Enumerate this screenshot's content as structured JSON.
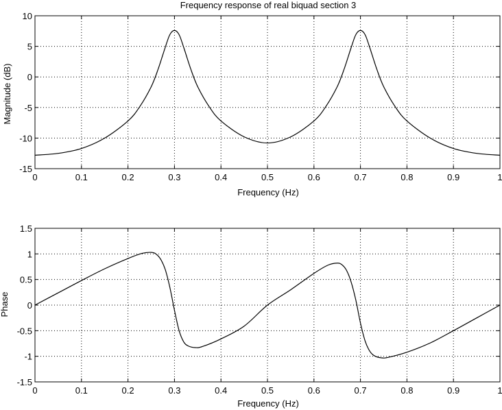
{
  "chart_data": [
    {
      "type": "line",
      "title": "Frequency response of real biquad section 3",
      "xlabel": "Frequency (Hz)",
      "ylabel": "Magnitude (dB)",
      "xlim": [
        0,
        1
      ],
      "ylim": [
        -15,
        10
      ],
      "xticks": [
        0,
        0.1,
        0.2,
        0.3,
        0.4,
        0.5,
        0.6,
        0.7,
        0.8,
        0.9,
        1
      ],
      "xtick_labels": [
        "0",
        "0.1",
        "0.2",
        "0.3",
        "0.4",
        "0.5",
        "0.6",
        "0.7",
        "0.8",
        "0.9",
        "1"
      ],
      "yticks": [
        -15,
        -10,
        -5,
        0,
        5,
        10
      ],
      "ytick_labels": [
        "-15",
        "-10",
        "-5",
        "0",
        "5",
        "10"
      ],
      "grid": true,
      "series": [
        {
          "x": [
            0,
            0.05,
            0.1,
            0.15,
            0.2,
            0.225,
            0.25,
            0.265,
            0.28,
            0.29,
            0.3,
            0.31,
            0.32,
            0.335,
            0.35,
            0.375,
            0.4,
            0.45,
            0.5,
            0.55,
            0.6,
            0.625,
            0.65,
            0.665,
            0.68,
            0.69,
            0.7,
            0.71,
            0.72,
            0.735,
            0.75,
            0.775,
            0.8,
            0.85,
            0.9,
            0.95,
            1
          ],
          "y": [
            -12.8,
            -12.5,
            -11.7,
            -10.0,
            -7.2,
            -4.9,
            -1.6,
            1.3,
            4.8,
            6.9,
            7.6,
            6.9,
            4.8,
            1.3,
            -1.6,
            -4.9,
            -7.2,
            -9.8,
            -10.8,
            -9.8,
            -7.2,
            -4.9,
            -1.6,
            1.3,
            4.8,
            6.9,
            7.6,
            6.9,
            4.8,
            1.3,
            -1.6,
            -4.9,
            -7.2,
            -10.0,
            -11.7,
            -12.5,
            -12.8
          ]
        }
      ]
    },
    {
      "type": "line",
      "title": "",
      "xlabel": "Frequency (Hz)",
      "ylabel": "Phase",
      "xlim": [
        0,
        1
      ],
      "ylim": [
        -1.5,
        1.5
      ],
      "xticks": [
        0,
        0.1,
        0.2,
        0.3,
        0.4,
        0.5,
        0.6,
        0.7,
        0.8,
        0.9,
        1
      ],
      "xtick_labels": [
        "0",
        "0.1",
        "0.2",
        "0.3",
        "0.4",
        "0.5",
        "0.6",
        "0.7",
        "0.8",
        "0.9",
        "1"
      ],
      "yticks": [
        -1.5,
        -1,
        -0.5,
        0,
        0.5,
        1,
        1.5
      ],
      "ytick_labels": [
        "-1.5",
        "-1",
        "-0.5",
        "0",
        "0.5",
        "1",
        "1.5"
      ],
      "grid": true,
      "series": [
        {
          "x": [
            0,
            0.05,
            0.1,
            0.15,
            0.2,
            0.23,
            0.25,
            0.26,
            0.27,
            0.28,
            0.29,
            0.3,
            0.31,
            0.32,
            0.33,
            0.345,
            0.36,
            0.4,
            0.45,
            0.5,
            0.55,
            0.6,
            0.63,
            0.65,
            0.66,
            0.67,
            0.68,
            0.69,
            0.7,
            0.71,
            0.72,
            0.73,
            0.745,
            0.76,
            0.8,
            0.85,
            0.9,
            0.95,
            1
          ],
          "y": [
            0,
            0.24,
            0.48,
            0.71,
            0.91,
            1.01,
            1.03,
            1.0,
            0.9,
            0.7,
            0.35,
            -0.1,
            -0.5,
            -0.72,
            -0.8,
            -0.83,
            -0.81,
            -0.66,
            -0.41,
            0,
            0.3,
            0.62,
            0.78,
            0.82,
            0.79,
            0.68,
            0.45,
            0.1,
            -0.35,
            -0.7,
            -0.9,
            -0.99,
            -1.03,
            -1.02,
            -0.92,
            -0.74,
            -0.5,
            -0.25,
            0
          ]
        }
      ]
    }
  ]
}
